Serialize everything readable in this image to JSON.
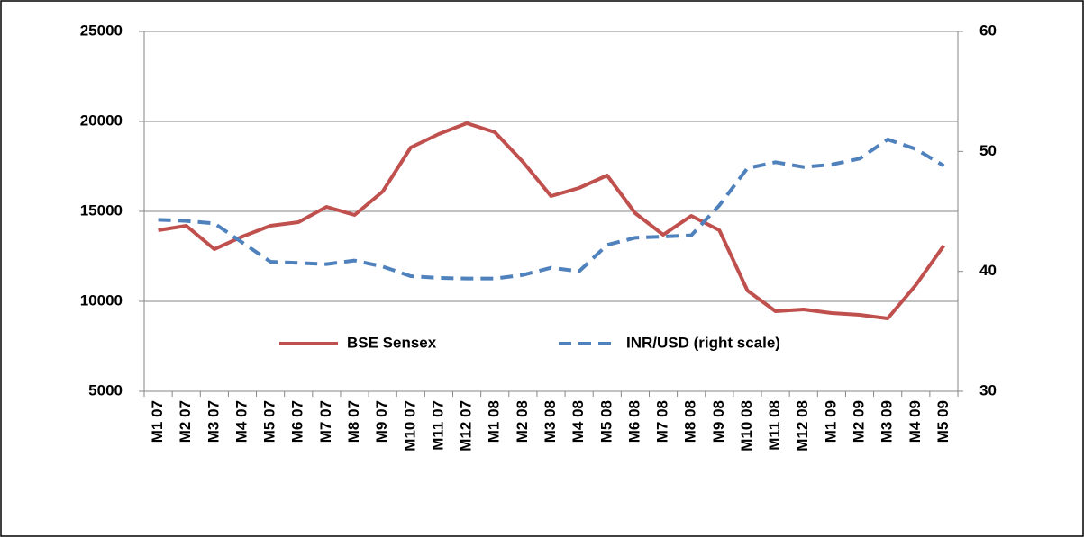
{
  "chart_data": {
    "type": "line",
    "categories": [
      "M1 07",
      "M2 07",
      "M3 07",
      "M4 07",
      "M5 07",
      "M6 07",
      "M7 07",
      "M8 07",
      "M9 07",
      "M10 07",
      "M11 07",
      "M12 07",
      "M1 08",
      "M2 08",
      "M3 08",
      "M4 08",
      "M5 08",
      "M6 08",
      "M7 08",
      "M8 08",
      "M9 08",
      "M10 08",
      "M11 08",
      "M12 08",
      "M1 09",
      "M2 09",
      "M3 09",
      "M4 09",
      "M5 09"
    ],
    "series": [
      {
        "name": "BSE Sensex",
        "color": "#c0504d",
        "values": [
          13950,
          14200,
          12900,
          13600,
          14200,
          14400,
          15250,
          14800,
          16100,
          18550,
          19300,
          19900,
          19400,
          17750,
          15850,
          16300,
          17000,
          14900,
          13700,
          14750,
          13950,
          10600,
          9450,
          9550,
          9350,
          9250,
          9050,
          10900,
          13100
        ]
      },
      {
        "name": "INR/USD (right scale)",
        "color": "#4f81bd",
        "dashed": true,
        "axis": "y2",
        "values": [
          44.3,
          44.2,
          44.0,
          42.4,
          40.8,
          40.7,
          40.6,
          40.9,
          40.4,
          39.6,
          39.45,
          39.4,
          39.4,
          39.7,
          40.3,
          40.0,
          42.2,
          42.8,
          42.9,
          43.0,
          45.5,
          48.6,
          49.1,
          48.7,
          48.9,
          49.4,
          51.0,
          50.2,
          48.8
        ]
      }
    ],
    "ylim": [
      5000,
      25000
    ],
    "yticks": [
      5000,
      10000,
      15000,
      20000,
      25000
    ],
    "y2lim": [
      30,
      60
    ],
    "y2ticks": [
      30,
      40,
      50,
      60
    ],
    "grid": true,
    "legend": "inside-bottom"
  }
}
